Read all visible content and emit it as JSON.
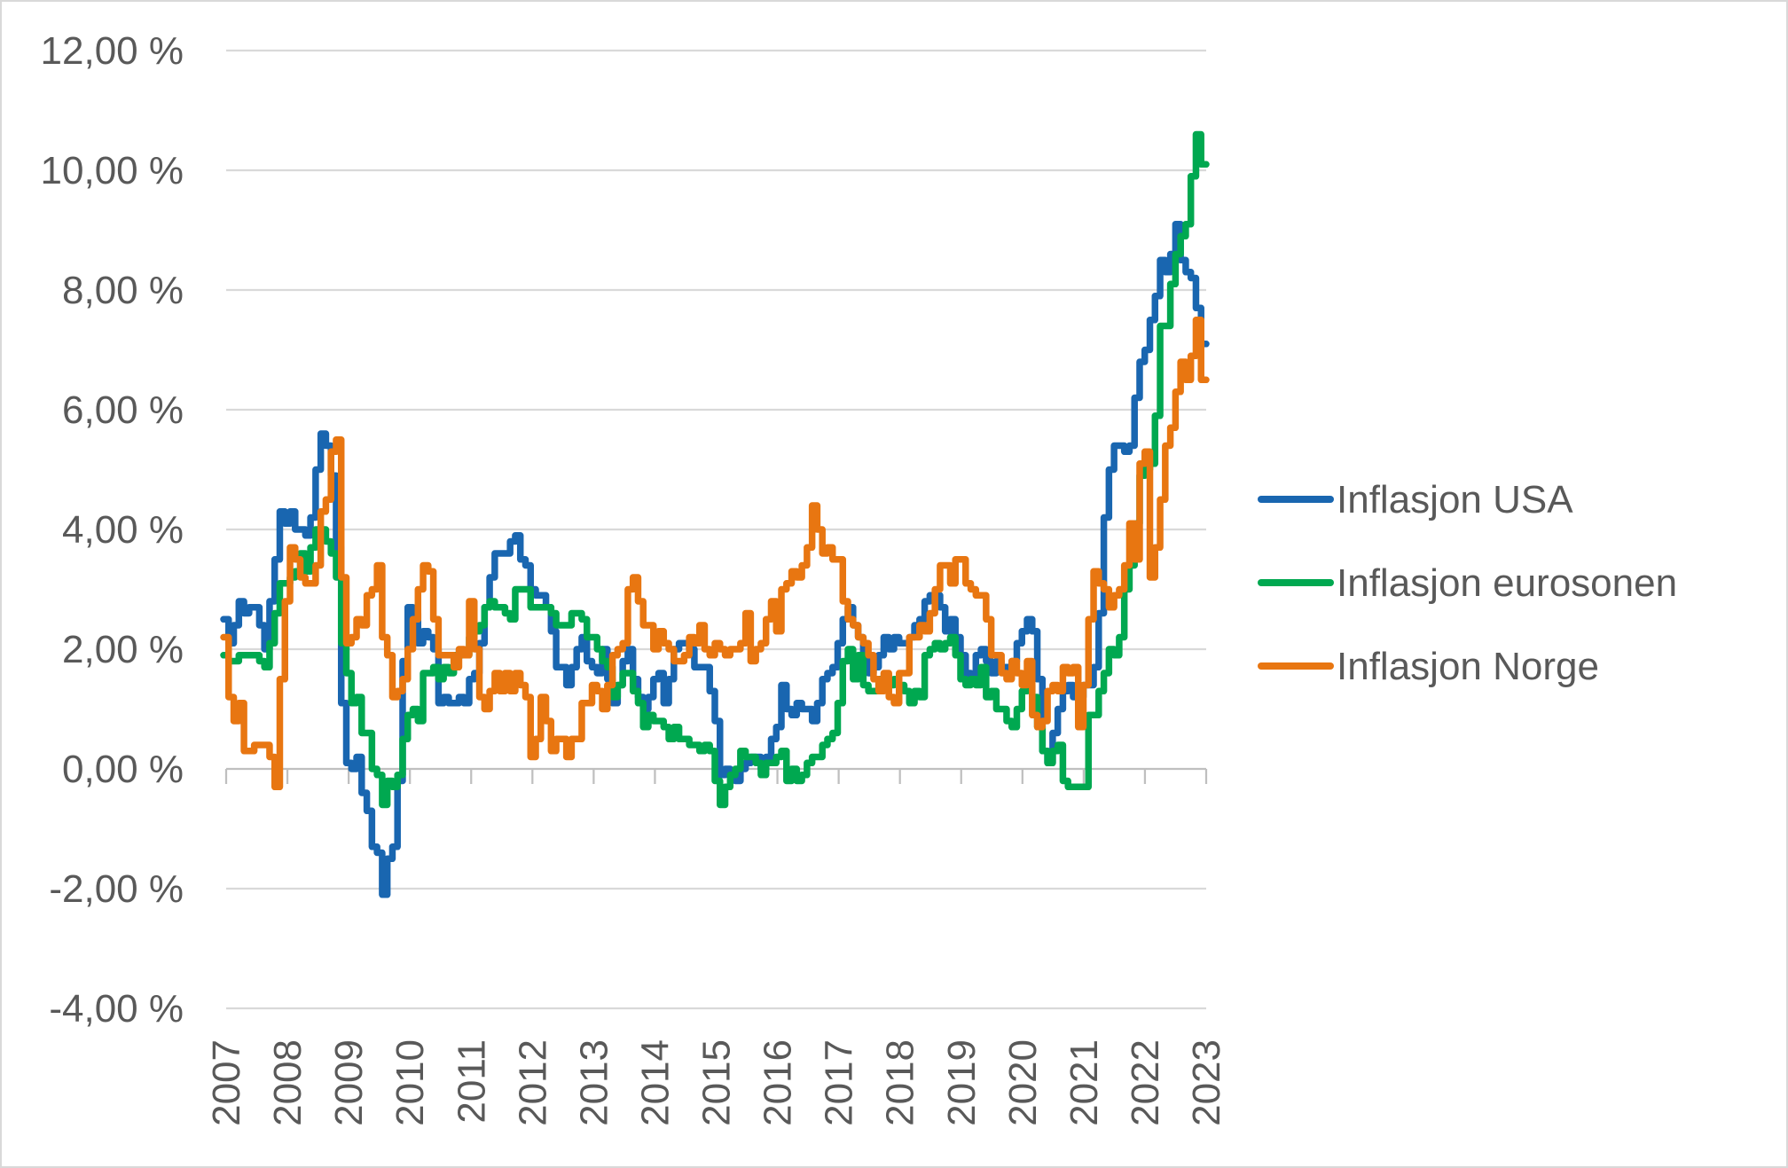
{
  "style": {
    "background": "#FFFFFF",
    "frame_border_color": "#D9D9D9",
    "gridline_color": "#D9D9D9",
    "axis_line_color": "#BFBFBF",
    "label_color": "#595959"
  },
  "chart_data": {
    "type": "line",
    "step_interpolation": true,
    "x_unit": "month",
    "x_range": {
      "start": "2006-12",
      "end": "2022-11"
    },
    "x_tick_labels": [
      "2007",
      "2008",
      "2009",
      "2010",
      "2011",
      "2012",
      "2013",
      "2014",
      "2015",
      "2016",
      "2017",
      "2018",
      "2019",
      "2020",
      "2021",
      "2022",
      "2023"
    ],
    "y_axis": {
      "min": -4,
      "max": 12,
      "tick_step": 2,
      "tick_values": [
        -4,
        -2,
        0,
        2,
        4,
        6,
        8,
        10,
        12
      ],
      "tick_labels": [
        "-4,00 %",
        "-2,00 %",
        "0,00 %",
        "2,00 %",
        "4,00 %",
        "6,00 %",
        "8,00 %",
        "10,00 %",
        "12,00 %"
      ]
    },
    "grid": true,
    "legend": {
      "position": "right",
      "entries": [
        {
          "id": "usa",
          "label": "Inflasjon USA",
          "color": "#1966B0"
        },
        {
          "id": "eurosonen",
          "label": "Inflasjon eurosonen",
          "color": "#00A850"
        },
        {
          "id": "norge",
          "label": "Inflasjon Norge",
          "color": "#E87611"
        }
      ]
    },
    "series": [
      {
        "id": "usa",
        "name": "Inflasjon USA",
        "color": "#1966B0",
        "values": [
          2.5,
          2.1,
          2.4,
          2.8,
          2.6,
          2.7,
          2.7,
          2.4,
          2.0,
          2.8,
          3.5,
          4.3,
          4.1,
          4.3,
          4.0,
          4.0,
          3.9,
          4.2,
          5.0,
          5.6,
          5.4,
          4.9,
          3.7,
          1.1,
          0.1,
          0.0,
          0.2,
          -0.4,
          -0.7,
          -1.3,
          -1.4,
          -2.1,
          -1.5,
          -1.3,
          -0.2,
          1.8,
          2.7,
          2.6,
          2.1,
          2.3,
          2.2,
          2.0,
          1.1,
          1.2,
          1.1,
          1.1,
          1.2,
          1.1,
          1.5,
          1.6,
          2.1,
          2.7,
          3.2,
          3.6,
          3.6,
          3.6,
          3.8,
          3.9,
          3.5,
          3.4,
          3.0,
          2.9,
          2.9,
          2.7,
          2.3,
          1.7,
          1.7,
          1.4,
          1.7,
          2.0,
          2.2,
          1.8,
          1.7,
          1.6,
          2.0,
          1.5,
          1.1,
          1.4,
          1.8,
          2.0,
          1.5,
          1.2,
          1.0,
          1.2,
          1.5,
          1.6,
          1.1,
          1.5,
          2.0,
          2.1,
          2.1,
          2.0,
          1.7,
          1.7,
          1.7,
          1.3,
          0.8,
          -0.1,
          0.0,
          -0.1,
          -0.2,
          0.0,
          0.1,
          0.2,
          0.2,
          0.0,
          0.2,
          0.5,
          0.7,
          1.4,
          1.0,
          0.9,
          1.1,
          1.0,
          1.0,
          0.8,
          1.1,
          1.5,
          1.6,
          1.7,
          2.1,
          2.5,
          2.7,
          2.4,
          2.2,
          1.9,
          1.6,
          1.7,
          1.9,
          2.2,
          2.0,
          2.2,
          2.1,
          2.1,
          2.2,
          2.4,
          2.5,
          2.8,
          2.9,
          2.9,
          2.7,
          2.3,
          2.5,
          2.2,
          1.9,
          1.6,
          1.5,
          1.9,
          2.0,
          1.8,
          1.6,
          1.8,
          1.7,
          1.7,
          1.8,
          2.1,
          2.3,
          2.5,
          2.3,
          1.5,
          0.3,
          0.1,
          0.6,
          1.0,
          1.3,
          1.4,
          1.2,
          1.2,
          1.4,
          1.4,
          1.7,
          2.6,
          4.2,
          5.0,
          5.4,
          5.4,
          5.3,
          5.4,
          6.2,
          6.8,
          7.0,
          7.5,
          7.9,
          8.5,
          8.3,
          8.6,
          9.1,
          8.5,
          8.3,
          8.2,
          7.7,
          7.1
        ]
      },
      {
        "id": "eurosonen",
        "name": "Inflasjon eurosonen",
        "color": "#00A850",
        "values": [
          1.9,
          1.8,
          1.8,
          1.9,
          1.9,
          1.9,
          1.9,
          1.8,
          1.7,
          2.1,
          2.6,
          3.1,
          3.1,
          3.2,
          3.3,
          3.6,
          3.3,
          3.7,
          4.0,
          4.0,
          3.8,
          3.6,
          3.2,
          2.1,
          1.6,
          1.1,
          1.2,
          0.6,
          0.6,
          0.0,
          -0.1,
          -0.6,
          -0.2,
          -0.3,
          -0.1,
          0.5,
          0.9,
          1.0,
          0.8,
          1.6,
          1.6,
          1.7,
          1.5,
          1.7,
          1.6,
          1.9,
          1.9,
          1.9,
          2.2,
          2.3,
          2.4,
          2.7,
          2.8,
          2.7,
          2.7,
          2.6,
          2.5,
          3.0,
          3.0,
          3.0,
          2.7,
          2.7,
          2.7,
          2.7,
          2.6,
          2.4,
          2.4,
          2.4,
          2.6,
          2.6,
          2.5,
          2.2,
          2.2,
          2.0,
          1.8,
          1.7,
          1.2,
          1.4,
          1.6,
          1.6,
          1.3,
          1.1,
          0.7,
          0.9,
          0.8,
          0.8,
          0.7,
          0.5,
          0.7,
          0.5,
          0.5,
          0.4,
          0.4,
          0.3,
          0.4,
          0.3,
          -0.2,
          -0.6,
          -0.3,
          -0.1,
          0.0,
          0.3,
          0.2,
          0.2,
          0.1,
          -0.1,
          0.1,
          0.1,
          0.2,
          0.3,
          -0.2,
          0.0,
          -0.2,
          -0.1,
          0.1,
          0.2,
          0.2,
          0.4,
          0.5,
          0.6,
          1.1,
          1.8,
          2.0,
          1.5,
          1.9,
          1.4,
          1.3,
          1.3,
          1.5,
          1.5,
          1.4,
          1.5,
          1.4,
          1.3,
          1.1,
          1.3,
          1.2,
          1.9,
          2.0,
          2.1,
          2.0,
          2.1,
          2.2,
          1.9,
          1.5,
          1.4,
          1.5,
          1.4,
          1.7,
          1.2,
          1.3,
          1.0,
          1.0,
          0.8,
          0.7,
          1.0,
          1.3,
          1.4,
          1.2,
          0.7,
          0.3,
          0.1,
          0.3,
          0.4,
          -0.2,
          -0.3,
          -0.3,
          -0.3,
          -0.3,
          0.9,
          0.9,
          1.3,
          1.6,
          2.0,
          1.9,
          2.2,
          3.0,
          3.4,
          4.1,
          4.9,
          5.0,
          5.1,
          5.9,
          7.4,
          7.4,
          8.1,
          8.6,
          8.9,
          9.1,
          9.9,
          10.6,
          10.1
        ]
      },
      {
        "id": "norge",
        "name": "Inflasjon Norge",
        "color": "#E87611",
        "values": [
          2.2,
          1.2,
          0.8,
          1.1,
          0.3,
          0.3,
          0.4,
          0.4,
          0.4,
          0.2,
          -0.3,
          1.5,
          2.8,
          3.7,
          3.5,
          3.2,
          3.1,
          3.1,
          3.4,
          4.3,
          4.5,
          5.3,
          5.5,
          3.2,
          2.1,
          2.2,
          2.5,
          2.4,
          2.9,
          3.0,
          3.4,
          2.2,
          1.9,
          1.2,
          1.3,
          1.5,
          2.0,
          2.5,
          3.0,
          3.4,
          3.3,
          2.5,
          1.9,
          1.9,
          1.9,
          1.7,
          2.0,
          1.9,
          2.8,
          2.0,
          1.2,
          1.0,
          1.3,
          1.6,
          1.3,
          1.6,
          1.3,
          1.6,
          1.4,
          1.2,
          0.2,
          0.5,
          1.2,
          0.8,
          0.3,
          0.5,
          0.5,
          0.2,
          0.5,
          0.5,
          1.1,
          1.1,
          1.4,
          1.3,
          1.0,
          1.4,
          1.9,
          2.0,
          2.1,
          3.0,
          3.2,
          2.8,
          2.4,
          2.4,
          2.0,
          2.3,
          2.1,
          2.0,
          1.8,
          1.8,
          1.9,
          2.2,
          2.1,
          2.4,
          2.0,
          1.9,
          2.1,
          2.0,
          1.9,
          2.0,
          2.0,
          2.1,
          2.6,
          1.8,
          2.0,
          2.1,
          2.5,
          2.8,
          2.3,
          3.0,
          3.1,
          3.3,
          3.2,
          3.4,
          3.7,
          4.4,
          4.0,
          3.6,
          3.7,
          3.5,
          3.5,
          2.8,
          2.5,
          2.4,
          2.2,
          2.1,
          1.9,
          1.5,
          1.3,
          1.6,
          1.2,
          1.1,
          1.6,
          1.6,
          2.2,
          2.2,
          2.4,
          2.3,
          2.6,
          3.0,
          3.4,
          3.4,
          3.1,
          3.5,
          3.5,
          3.1,
          3.0,
          2.9,
          2.9,
          2.5,
          1.9,
          1.9,
          1.6,
          1.5,
          1.8,
          1.6,
          1.4,
          1.8,
          0.9,
          0.7,
          0.8,
          1.3,
          1.4,
          1.3,
          1.7,
          1.6,
          1.7,
          0.7,
          1.4,
          2.5,
          3.3,
          3.1,
          3.0,
          2.7,
          2.9,
          3.0,
          3.4,
          4.1,
          3.5,
          5.1,
          5.3,
          3.2,
          3.7,
          4.5,
          5.4,
          5.7,
          6.3,
          6.8,
          6.5,
          6.9,
          7.5,
          6.5
        ]
      }
    ]
  }
}
